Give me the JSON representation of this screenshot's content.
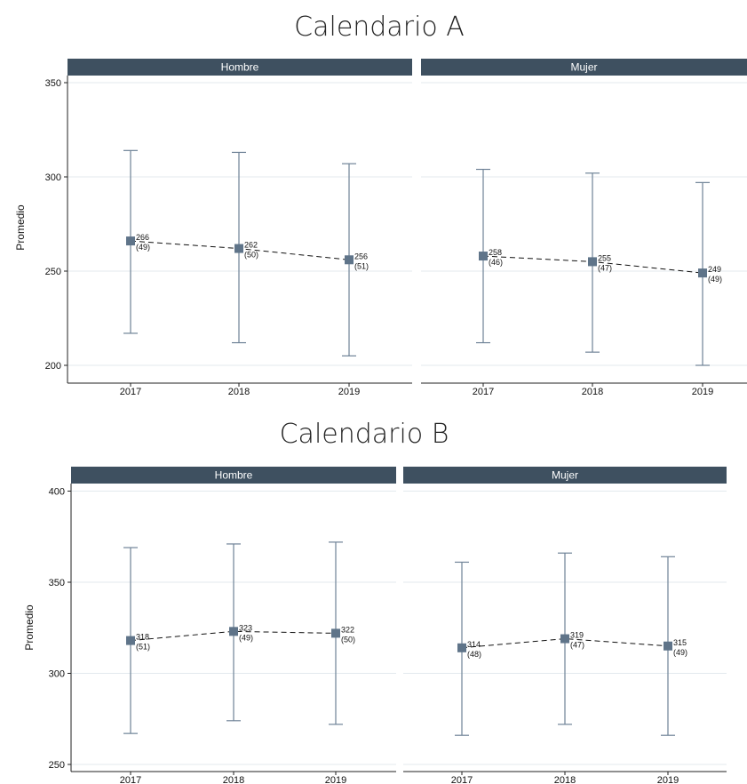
{
  "colors": {
    "strip": "#3e5060",
    "marker": "#5f7489",
    "errorbar": "#6f8397",
    "line": "#111111",
    "grid": "#e3e9ee"
  },
  "chart_data": [
    {
      "type": "scatter",
      "title": "Calendario A",
      "ylabel": "Promedio",
      "ylim": [
        195,
        354
      ],
      "yticks": [
        200,
        250,
        300,
        350
      ],
      "categories": [
        "2017",
        "2018",
        "2019"
      ],
      "grid": true,
      "panels": [
        {
          "name": "Hombre",
          "values": [
            266,
            262,
            256
          ],
          "value_labels": [
            "266",
            "262",
            "256"
          ],
          "n_labels": [
            "(49)",
            "(50)",
            "(51)"
          ],
          "ci_low": [
            217,
            212,
            205
          ],
          "ci_high": [
            314,
            313,
            307
          ]
        },
        {
          "name": "Mujer",
          "values": [
            258,
            255,
            249
          ],
          "value_labels": [
            "258",
            "255",
            "249"
          ],
          "n_labels": [
            "(46)",
            "(47)",
            "(49)"
          ],
          "ci_low": [
            212,
            207,
            200
          ],
          "ci_high": [
            304,
            302,
            297
          ]
        }
      ]
    },
    {
      "type": "scatter",
      "title": "Calendario B",
      "ylabel": "Promedio",
      "ylim": [
        245,
        404
      ],
      "yticks": [
        250,
        300,
        350,
        400
      ],
      "categories": [
        "2017",
        "2018",
        "2019"
      ],
      "grid": true,
      "panels": [
        {
          "name": "Hombre",
          "values": [
            318,
            323,
            322
          ],
          "value_labels": [
            "318",
            "323",
            "322"
          ],
          "n_labels": [
            "(51)",
            "(49)",
            "(50)"
          ],
          "ci_low": [
            267,
            274,
            272
          ],
          "ci_high": [
            369,
            371,
            372
          ]
        },
        {
          "name": "Mujer",
          "values": [
            314,
            319,
            315
          ],
          "value_labels": [
            "314",
            "319",
            "315"
          ],
          "n_labels": [
            "(48)",
            "(47)",
            "(49)"
          ],
          "ci_low": [
            266,
            272,
            266
          ],
          "ci_high": [
            361,
            366,
            364
          ]
        }
      ]
    }
  ]
}
